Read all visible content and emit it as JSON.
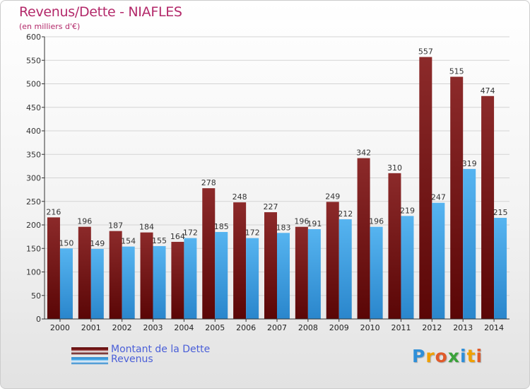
{
  "title": "Revenus/Dette - NIAFLES",
  "subtitle": "(en milliers d'€)",
  "legend": {
    "dette_label": "Montant de la Dette",
    "revenus_label": "Revenus"
  },
  "logo": {
    "letters": [
      "P",
      "r",
      "o",
      "x",
      "i",
      "t",
      "i"
    ],
    "colors": [
      "#2f8fd8",
      "#f0a000",
      "#e05a2a",
      "#3aa23a",
      "#2f8fd8",
      "#f0a000",
      "#e05a2a"
    ]
  },
  "colors": {
    "dette": "#7a1a1a",
    "revenus": "#3aa0e8",
    "title": "#b3296a",
    "legend_text": "#4a5fd8"
  },
  "chart_data": {
    "type": "bar",
    "categories": [
      "2000",
      "2001",
      "2002",
      "2003",
      "2004",
      "2005",
      "2006",
      "2007",
      "2008",
      "2009",
      "2010",
      "2011",
      "2012",
      "2013",
      "2014"
    ],
    "series": [
      {
        "name": "Montant de la Dette",
        "values": [
          216,
          196,
          187,
          184,
          164,
          278,
          248,
          227,
          196,
          249,
          342,
          310,
          557,
          515,
          474
        ]
      },
      {
        "name": "Revenus",
        "values": [
          150,
          149,
          154,
          155,
          172,
          185,
          172,
          183,
          191,
          212,
          196,
          219,
          247,
          319,
          215
        ]
      }
    ],
    "ylim": [
      0,
      600
    ],
    "yticks": [
      0,
      50,
      100,
      150,
      200,
      250,
      300,
      350,
      400,
      450,
      500,
      550,
      600
    ],
    "grid": true,
    "legend_position": "bottom-left"
  }
}
